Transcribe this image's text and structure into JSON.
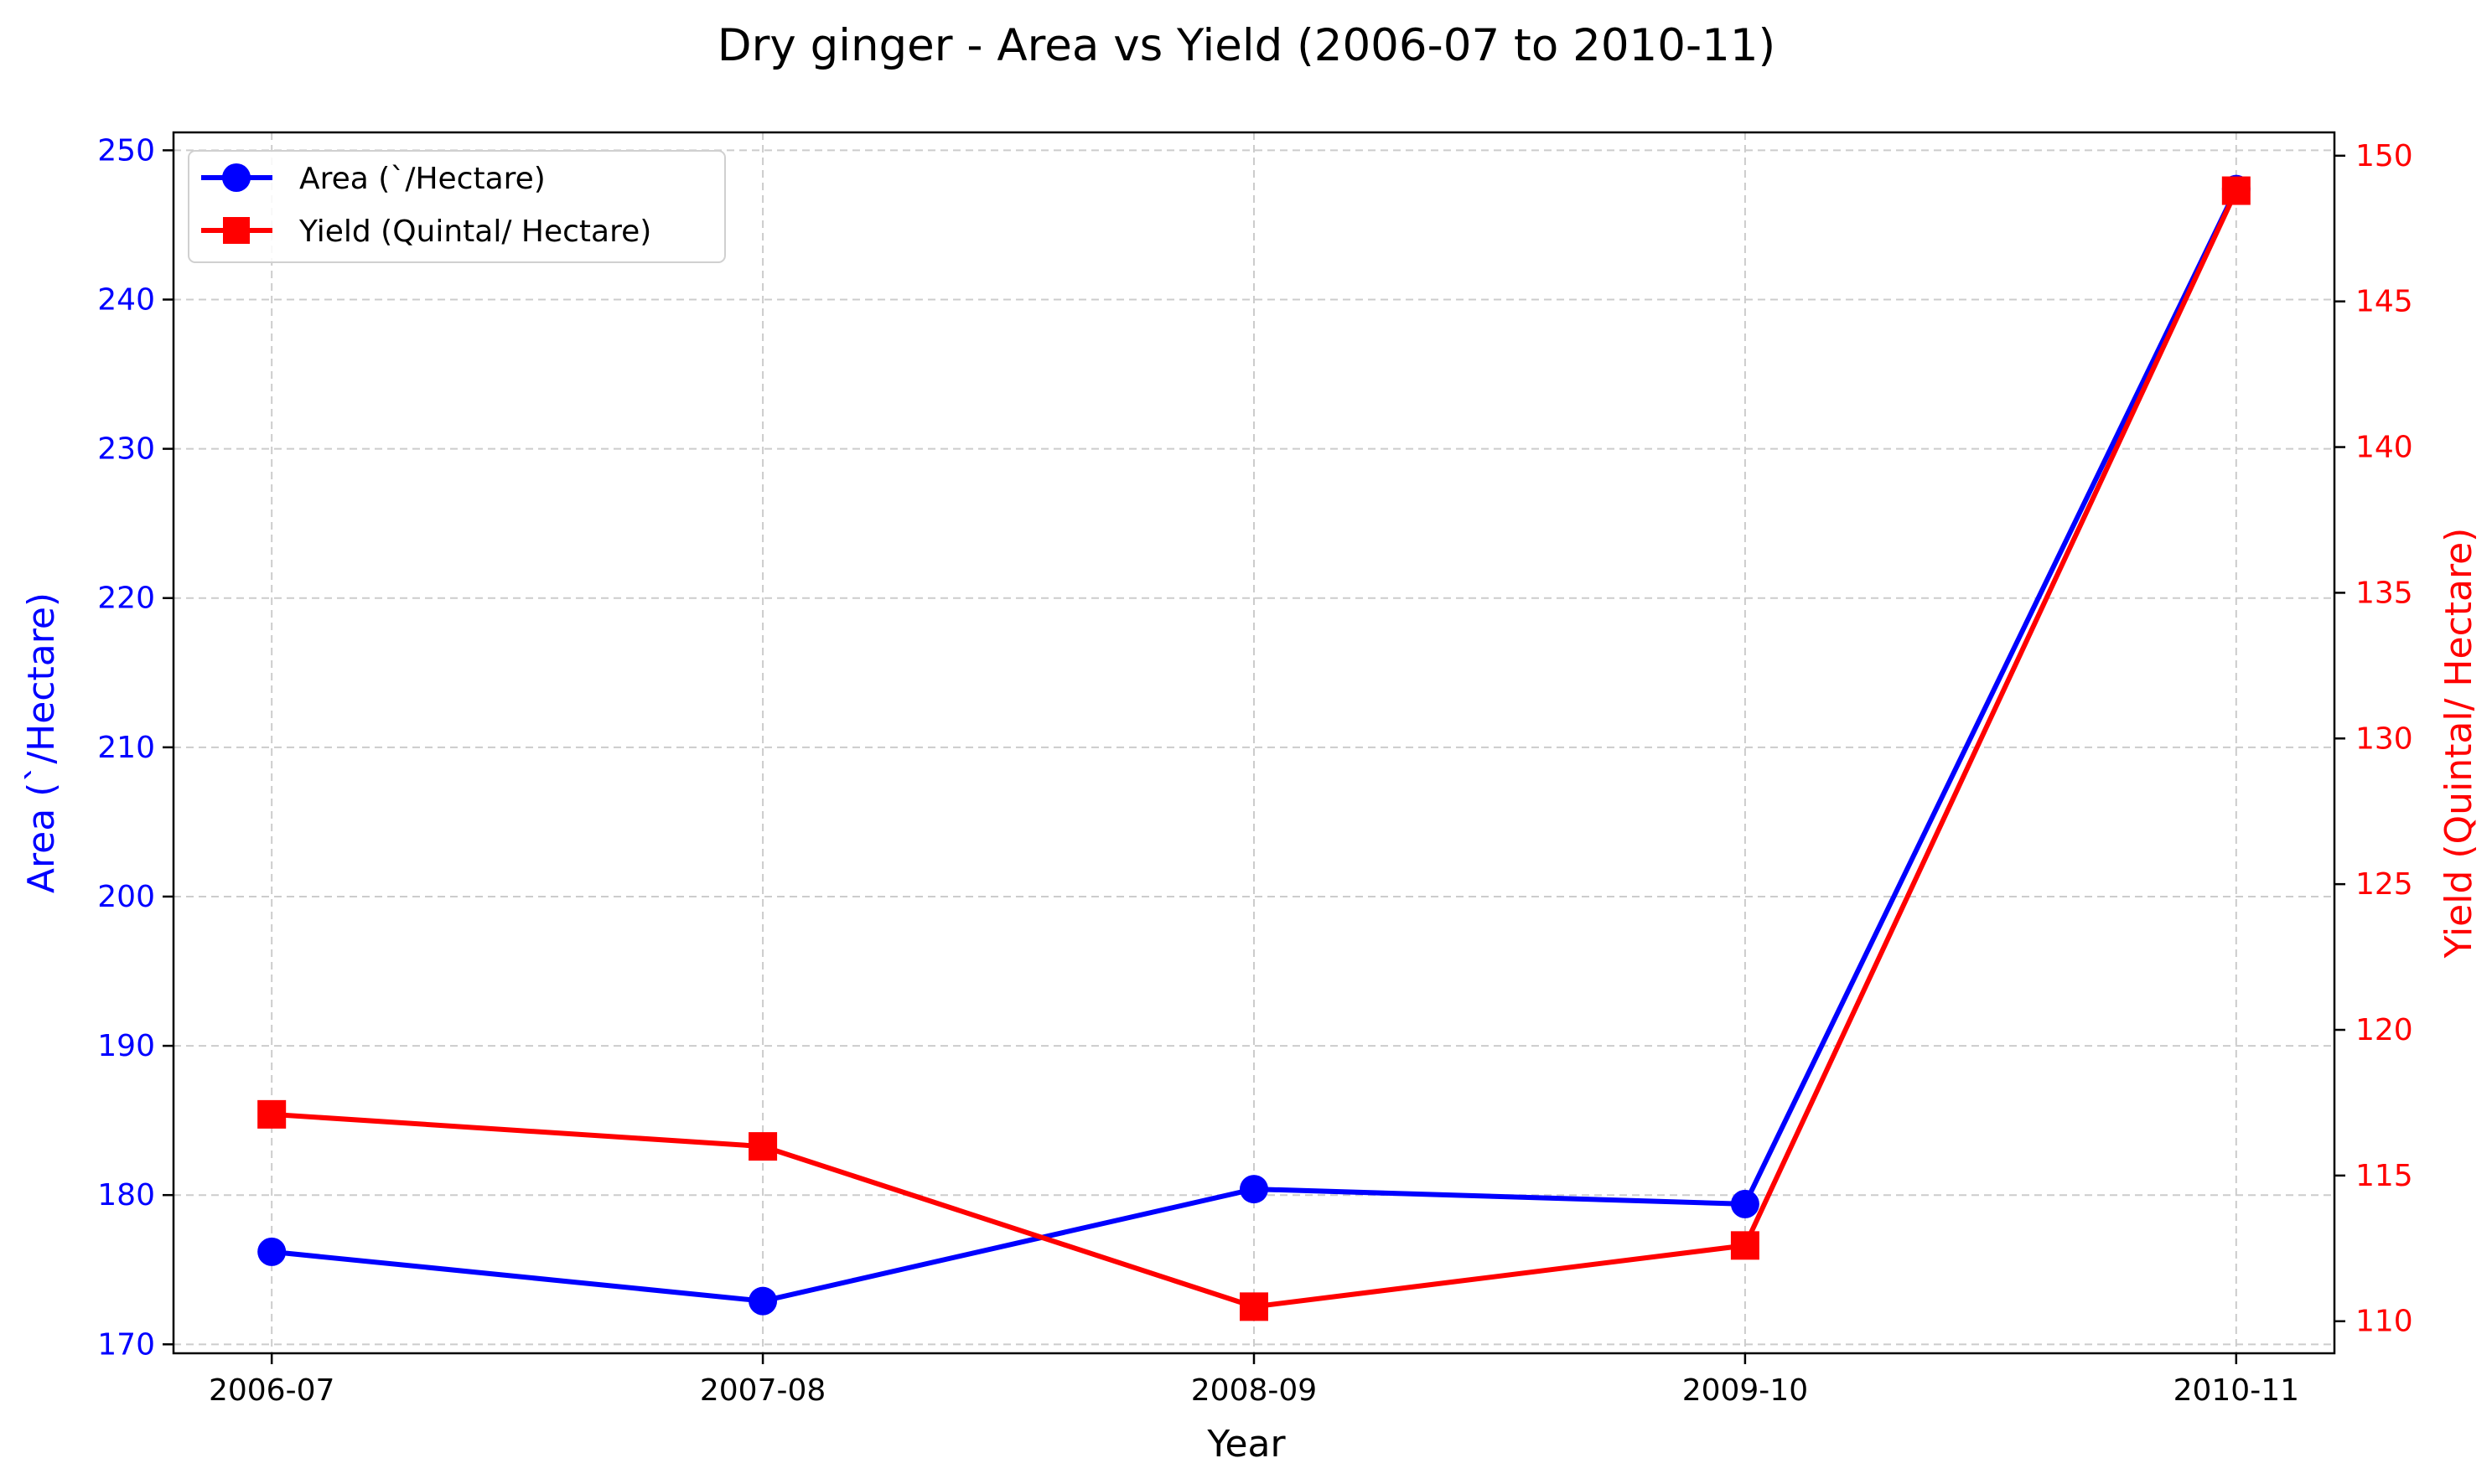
{
  "chart_data": {
    "type": "line",
    "title": "Dry ginger  - Area vs Yield (2006-07 to 2010-11)",
    "xlabel": "Year",
    "categories": [
      "2006-07",
      "2007-08",
      "2008-09",
      "2009-10",
      "2010-11"
    ],
    "y_left": {
      "label": "Area (`/Hectare)",
      "ylim": [
        169.4,
        251.2
      ],
      "ticks": [
        170,
        180,
        190,
        200,
        210,
        220,
        230,
        240,
        250
      ],
      "color": "#0000ff"
    },
    "y_right": {
      "label": "Yield (Quintal/ Hectare)",
      "ylim": [
        108.9,
        150.8
      ],
      "ticks": [
        110,
        115,
        120,
        125,
        130,
        135,
        140,
        145,
        150
      ],
      "color": "#ff0000"
    },
    "series": [
      {
        "name": "Area (`/Hectare)",
        "axis": "left",
        "color": "#0000ff",
        "marker": "circle",
        "values": [
          176.2,
          172.9,
          180.4,
          179.4,
          247.4
        ]
      },
      {
        "name": "Yield (Quintal/ Hectare)",
        "axis": "right",
        "color": "#ff0000",
        "marker": "square",
        "values": [
          117.1,
          116.0,
          110.5,
          112.6,
          148.8
        ]
      }
    ],
    "grid": true,
    "legend_position": "top-left"
  }
}
